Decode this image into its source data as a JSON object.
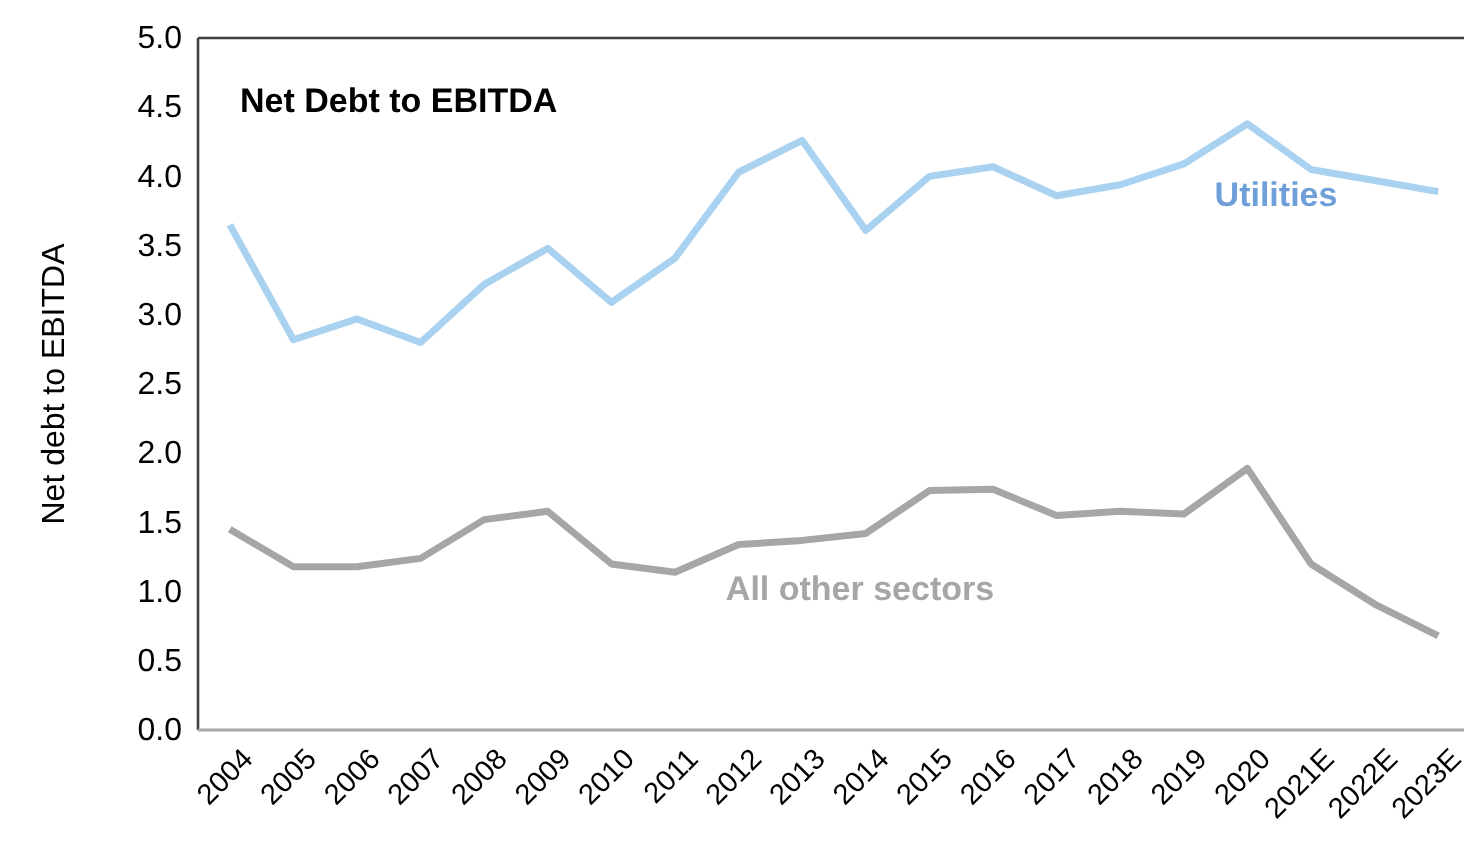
{
  "chart_data": {
    "type": "line",
    "title": "Net Debt to EBITDA",
    "ylabel": "Net debt to EBITDA",
    "categories": [
      "2004",
      "2005",
      "2006",
      "2007",
      "2008",
      "2009",
      "2010",
      "2011",
      "2012",
      "2013",
      "2014",
      "2015",
      "2016",
      "2017",
      "2018",
      "2019",
      "2020",
      "2021E",
      "2022E",
      "2023E"
    ],
    "series": [
      {
        "name": "Utilities",
        "color": "#a9d1f0",
        "values": [
          3.65,
          2.82,
          2.97,
          2.8,
          3.22,
          3.48,
          3.09,
          3.41,
          4.03,
          4.26,
          3.61,
          4.0,
          4.07,
          3.86,
          3.94,
          4.09,
          4.38,
          4.05,
          3.97,
          3.89
        ]
      },
      {
        "name": "All other sectors",
        "color": "#a6a6a6",
        "values": [
          1.45,
          1.18,
          1.18,
          1.24,
          1.52,
          1.58,
          1.2,
          1.14,
          1.34,
          1.37,
          1.42,
          1.73,
          1.74,
          1.55,
          1.58,
          1.56,
          1.89,
          1.2,
          0.91,
          0.68
        ]
      }
    ],
    "ylim": [
      0,
      5
    ],
    "yticks": [
      {
        "value": 0,
        "label": "0.0"
      },
      {
        "value": 0.5,
        "label": "0.5"
      },
      {
        "value": 1,
        "label": "1.0"
      },
      {
        "value": 1.5,
        "label": "1.5"
      },
      {
        "value": 2,
        "label": "2.0"
      },
      {
        "value": 2.5,
        "label": "2.5"
      },
      {
        "value": 3,
        "label": "3.0"
      },
      {
        "value": 3.5,
        "label": "3.5"
      },
      {
        "value": 4,
        "label": "4.0"
      },
      {
        "value": 4.5,
        "label": "4.5"
      },
      {
        "value": 5,
        "label": "5.0"
      }
    ],
    "grid": false,
    "legend": false,
    "marker": "none",
    "line_style": "solid"
  }
}
